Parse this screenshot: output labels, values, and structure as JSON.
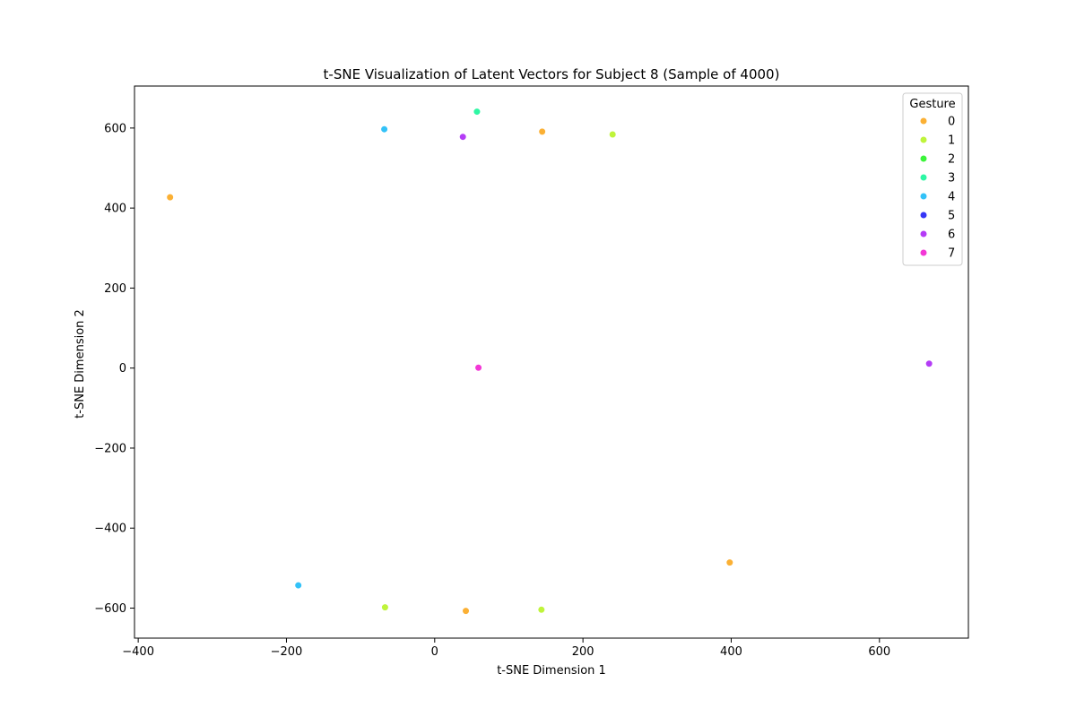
{
  "chart_data": {
    "type": "scatter",
    "title": "t-SNE Visualization of Latent Vectors for Subject 8 (Sample of 4000)",
    "xlabel": "t-SNE Dimension 1",
    "ylabel": "t-SNE Dimension 2",
    "xlim": [
      -405,
      720
    ],
    "ylim": [
      -675,
      705
    ],
    "xticks": [
      -400,
      -200,
      0,
      200,
      400,
      600
    ],
    "yticks": [
      -600,
      -400,
      -200,
      0,
      200,
      400,
      600
    ],
    "grid": false,
    "legend": {
      "title": "Gesture",
      "placement": "top-right",
      "entries": [
        {
          "label": "0",
          "color": "#fbb034"
        },
        {
          "label": "1",
          "color": "#bff43b"
        },
        {
          "label": "2",
          "color": "#3bf43a"
        },
        {
          "label": "3",
          "color": "#2ef7a4"
        },
        {
          "label": "4",
          "color": "#33c2f8"
        },
        {
          "label": "5",
          "color": "#3636f6"
        },
        {
          "label": "6",
          "color": "#b43cf6"
        },
        {
          "label": "7",
          "color": "#f337d6"
        }
      ]
    },
    "series": [
      {
        "name": "0",
        "points": [
          [
            -357,
            427
          ],
          [
            145,
            591
          ],
          [
            398,
            -486
          ],
          [
            42,
            -607
          ]
        ]
      },
      {
        "name": "1",
        "points": [
          [
            240,
            584
          ],
          [
            -67,
            -598
          ],
          [
            144,
            -604
          ]
        ]
      },
      {
        "name": "3",
        "points": [
          [
            57,
            641
          ]
        ]
      },
      {
        "name": "4",
        "points": [
          [
            -68,
            597
          ],
          [
            -184,
            -543
          ]
        ]
      },
      {
        "name": "6",
        "points": [
          [
            38,
            578
          ],
          [
            667,
            11
          ]
        ]
      },
      {
        "name": "7",
        "points": [
          [
            59,
            1
          ]
        ]
      }
    ]
  }
}
